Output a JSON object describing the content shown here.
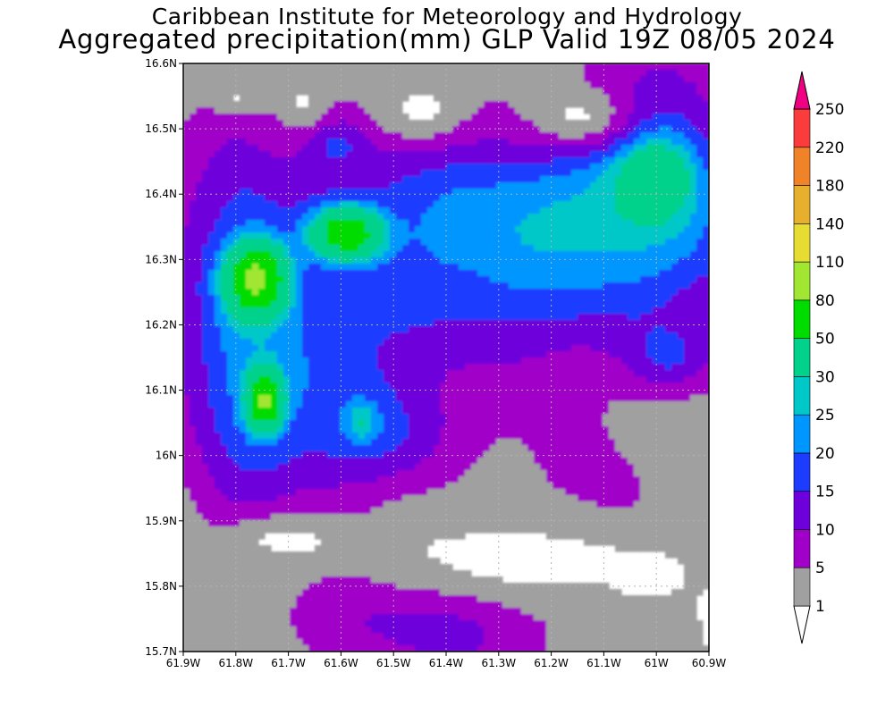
{
  "header": {
    "institute": "Caribbean Institute for Meteorology and Hydrology",
    "product": "Aggregated precipitation(mm) GLP Valid 19Z 08/05 2024"
  },
  "map": {
    "lat_range": [
      15.7,
      16.6
    ],
    "lon_range": [
      -61.9,
      -60.9
    ],
    "lat_ticks": [
      "15.7N",
      "15.8N",
      "15.9N",
      "16N",
      "16.1N",
      "16.2N",
      "16.3N",
      "16.4N",
      "16.5N",
      "16.6N"
    ],
    "lon_ticks": [
      "61.9W",
      "61.8W",
      "61.7W",
      "61.6W",
      "61.5W",
      "61.4W",
      "61.3W",
      "61.2W",
      "61.1W",
      "61W",
      "60.9W"
    ],
    "grid": true
  },
  "colorbar": {
    "levels": [
      "1",
      "5",
      "10",
      "15",
      "20",
      "25",
      "30",
      "50",
      "80",
      "110",
      "140",
      "180",
      "220",
      "250"
    ],
    "colors": [
      "#a0a0a0",
      "#a000c8",
      "#6e00dc",
      "#1e3cff",
      "#0096ff",
      "#00c8c8",
      "#00d28c",
      "#00dc00",
      "#a0e632",
      "#e6dc32",
      "#e6af2d",
      "#f08228",
      "#fa3c3c",
      "#f00082"
    ],
    "under_color": "#ffffff",
    "over_color": "#f00082"
  },
  "colors": {
    "background": "#ffffff",
    "frame": "#000000",
    "gridline": "#b4b4b4",
    "no_rain": "#ffffff"
  }
}
